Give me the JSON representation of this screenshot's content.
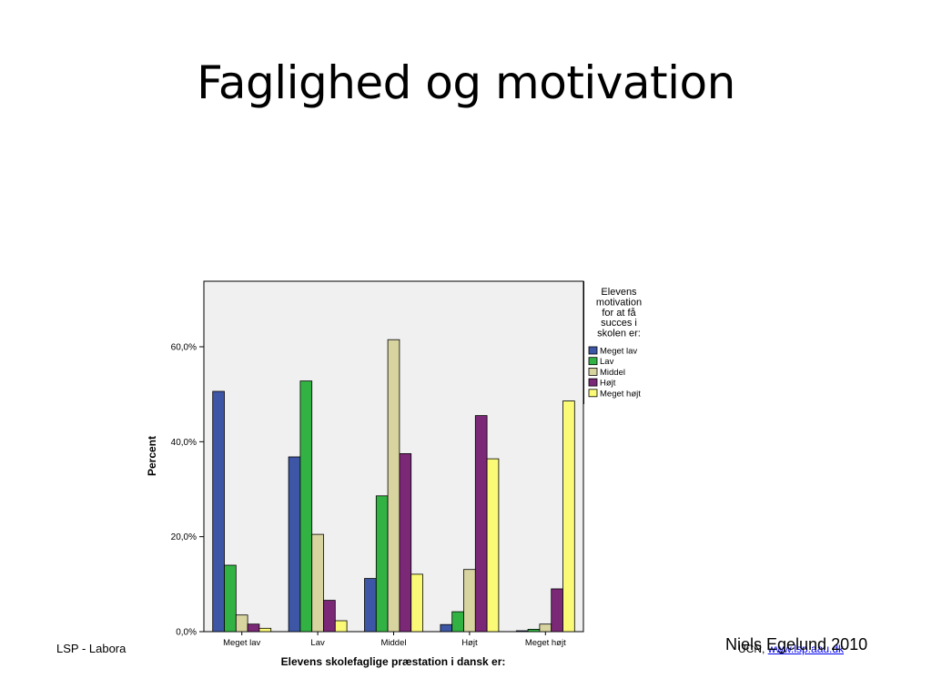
{
  "slide": {
    "title": "Faglighed og motivation",
    "footer_left": "LSP - Labora",
    "footer_url_prefix": "UCN, ",
    "footer_url": "www.lsp.aau.dk",
    "author": "Niels Egelund 2010"
  },
  "chart_data": {
    "type": "bar",
    "title": "",
    "xlabel": "Elevens skolefaglige præstation i dansk er:",
    "ylabel": "Percent",
    "ylim": [
      0,
      66
    ],
    "yticks": [
      {
        "value": 0,
        "label": "0,0%"
      },
      {
        "value": 20,
        "label": "20,0%"
      },
      {
        "value": 40,
        "label": "40,0%"
      },
      {
        "value": 60,
        "label": "60,0%"
      }
    ],
    "categories": [
      "Meget lav",
      "Lav",
      "Middel",
      "Højt",
      "Meget højt"
    ],
    "legend": {
      "title": "Elevens motivation for at få succes i skolen er:",
      "title_lines": [
        "Elevens",
        "motivation",
        "for at få",
        "succes i",
        "skolen er:"
      ],
      "placement": "right"
    },
    "series": [
      {
        "name": "Meget lav",
        "color": "#3d56a6",
        "values": [
          50.6,
          36.8,
          11.2,
          1.5,
          0.2
        ]
      },
      {
        "name": "Lav",
        "color": "#33b244",
        "values": [
          14.0,
          52.8,
          28.6,
          4.2,
          0.5
        ]
      },
      {
        "name": "Middel",
        "color": "#d8d4a0",
        "values": [
          3.5,
          20.5,
          61.5,
          13.1,
          1.6
        ]
      },
      {
        "name": "Højt",
        "color": "#7b2877",
        "values": [
          1.6,
          6.6,
          37.5,
          45.5,
          9.0
        ]
      },
      {
        "name": "Meget højt",
        "color": "#fafa76",
        "values": [
          0.7,
          2.3,
          12.1,
          36.4,
          48.6
        ]
      }
    ],
    "grid": false,
    "plot_background": "#f0f0f0"
  }
}
